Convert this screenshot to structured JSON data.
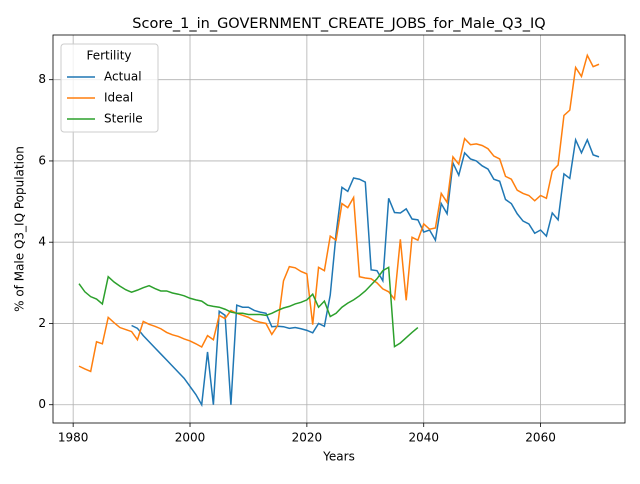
{
  "chart_data": {
    "type": "line",
    "title": "Score_1_in_GOVERNMENT_CREATE_JOBS_for_Male_Q3_IQ",
    "x_label": "Years",
    "y_label": "% of Male Q3_IQ Population",
    "legend_title": "Fertility",
    "legend_loc": "upper left",
    "grid": true,
    "xlim": [
      1976.55,
      2074.45
    ],
    "ylim": [
      -0.45,
      9.1
    ],
    "xticks": [
      1980,
      2000,
      2020,
      2040,
      2060
    ],
    "yticks": [
      0,
      2,
      4,
      6,
      8
    ],
    "x": [
      1981,
      1982,
      1983,
      1984,
      1985,
      1986,
      1987,
      1988,
      1989,
      1990,
      1991,
      1992,
      1993,
      1994,
      1995,
      1996,
      1997,
      1998,
      1999,
      2000,
      2001,
      2002,
      2003,
      2004,
      2005,
      2006,
      2007,
      2008,
      2009,
      2010,
      2011,
      2012,
      2013,
      2014,
      2015,
      2016,
      2017,
      2018,
      2019,
      2020,
      2021,
      2022,
      2023,
      2024,
      2025,
      2026,
      2027,
      2028,
      2029,
      2030,
      2031,
      2032,
      2033,
      2034,
      2035,
      2036,
      2037,
      2038,
      2039,
      2040,
      2041,
      2042,
      2043,
      2044,
      2045,
      2046,
      2047,
      2048,
      2049,
      2050,
      2051,
      2052,
      2053,
      2054,
      2055,
      2056,
      2057,
      2058,
      2059,
      2060,
      2061,
      2062,
      2063,
      2064,
      2065,
      2066,
      2067,
      2068,
      2069,
      2070
    ],
    "series": [
      {
        "name": "Actual",
        "color": "#1f77b4",
        "values": [
          null,
          null,
          null,
          null,
          null,
          null,
          null,
          null,
          null,
          1.95,
          1.88,
          1.7,
          1.55,
          1.4,
          1.25,
          1.1,
          0.95,
          0.8,
          0.65,
          0.45,
          0.25,
          0,
          1.3,
          0,
          2.3,
          2.2,
          0,
          2.45,
          2.4,
          2.4,
          2.32,
          2.28,
          2.25,
          1.92,
          1.93,
          1.92,
          1.88,
          1.9,
          1.87,
          1.83,
          1.77,
          2.0,
          1.93,
          2.7,
          4.2,
          5.35,
          5.25,
          5.58,
          5.55,
          5.48,
          3.32,
          3.3,
          3.05,
          5.08,
          4.73,
          4.72,
          4.82,
          4.57,
          4.55,
          4.25,
          4.3,
          4.05,
          4.95,
          4.7,
          5.95,
          5.65,
          6.2,
          6.05,
          6.0,
          5.88,
          5.8,
          5.55,
          5.5,
          5.05,
          4.95,
          4.7,
          4.52,
          4.45,
          4.22,
          4.3,
          4.15,
          4.72,
          4.55,
          5.68,
          5.57,
          6.52,
          6.2,
          6.52,
          6.15,
          6.1
        ]
      },
      {
        "name": "Ideal",
        "color": "#ff7f0e",
        "values": [
          0.95,
          0.88,
          0.82,
          1.55,
          1.5,
          2.15,
          2.02,
          1.9,
          1.85,
          1.8,
          1.6,
          2.05,
          1.98,
          1.93,
          1.87,
          1.78,
          1.72,
          1.68,
          1.62,
          1.57,
          1.5,
          1.42,
          1.7,
          1.6,
          2.2,
          2.12,
          2.32,
          2.25,
          2.2,
          2.15,
          2.07,
          2.03,
          2.0,
          1.73,
          1.95,
          3.05,
          3.4,
          3.37,
          3.28,
          3.22,
          1.97,
          3.38,
          3.3,
          4.15,
          4.05,
          4.95,
          4.85,
          5.1,
          3.15,
          3.12,
          3.1,
          3.0,
          2.85,
          2.78,
          2.6,
          4.07,
          2.57,
          4.12,
          4.05,
          4.45,
          4.32,
          4.35,
          5.2,
          4.98,
          6.1,
          5.92,
          6.55,
          6.4,
          6.42,
          6.38,
          6.3,
          6.12,
          6.05,
          5.62,
          5.55,
          5.28,
          5.2,
          5.15,
          5.02,
          5.15,
          5.08,
          5.75,
          5.9,
          7.12,
          7.25,
          8.3,
          8.08,
          8.6,
          8.32,
          8.38
        ]
      },
      {
        "name": "Sterile",
        "color": "#2ca02c",
        "values": [
          2.98,
          2.78,
          2.66,
          2.6,
          2.48,
          3.15,
          3.02,
          2.92,
          2.83,
          2.77,
          2.82,
          2.88,
          2.93,
          2.86,
          2.8,
          2.8,
          2.75,
          2.72,
          2.68,
          2.62,
          2.58,
          2.55,
          2.45,
          2.42,
          2.4,
          2.35,
          2.28,
          2.25,
          2.25,
          2.22,
          2.22,
          2.22,
          2.2,
          2.25,
          2.32,
          2.38,
          2.42,
          2.48,
          2.52,
          2.58,
          2.72,
          2.4,
          2.55,
          2.17,
          2.25,
          2.4,
          2.5,
          2.58,
          2.68,
          2.8,
          2.95,
          3.1,
          3.3,
          3.38,
          1.43,
          1.52,
          1.65,
          1.78,
          1.9,
          null,
          null,
          null,
          null,
          null,
          null,
          null,
          null,
          null,
          null,
          null,
          null,
          null,
          null,
          null,
          null,
          null,
          null,
          null,
          null,
          null,
          null,
          null,
          null,
          null,
          null,
          null,
          null,
          null,
          null,
          null
        ]
      }
    ]
  }
}
